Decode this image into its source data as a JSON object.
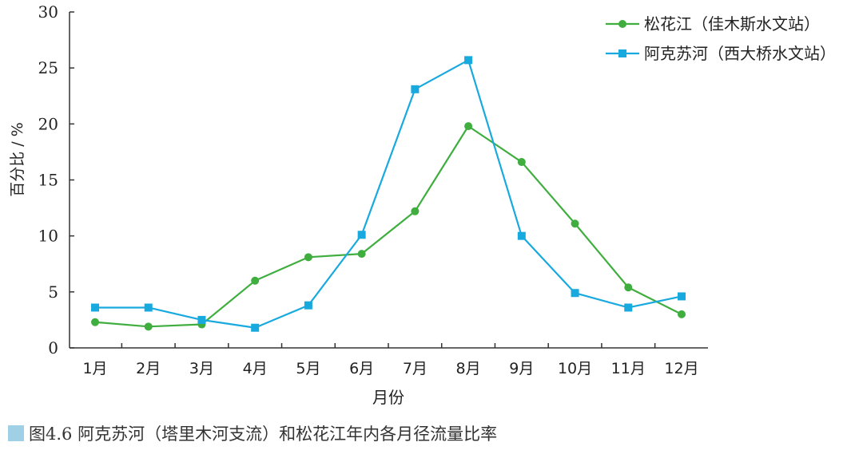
{
  "chart_data": {
    "type": "line",
    "categories": [
      "1月",
      "2月",
      "3月",
      "4月",
      "5月",
      "6月",
      "7月",
      "8月",
      "9月",
      "10月",
      "11月",
      "12月"
    ],
    "series": [
      {
        "name": "松花江（佳木斯水文站）",
        "color": "#3fae3f",
        "marker": "circle",
        "values": [
          2.3,
          1.9,
          2.1,
          6.0,
          8.1,
          8.4,
          12.2,
          19.8,
          16.6,
          11.1,
          5.4,
          3.0
        ]
      },
      {
        "name": "阿克苏河（西大桥水文站）",
        "color": "#18a9df",
        "marker": "square",
        "values": [
          3.6,
          3.6,
          2.5,
          1.8,
          3.8,
          10.1,
          23.1,
          25.7,
          10.0,
          4.9,
          3.6,
          4.6
        ]
      }
    ],
    "xlabel": "月份",
    "ylabel": "百分比 / %",
    "ylim": [
      0,
      30
    ],
    "yticks": [
      0,
      5,
      10,
      15,
      20,
      25,
      30
    ],
    "legend_position": "top-right",
    "grid": false
  },
  "caption": {
    "text": "图4.6  阿克苏河（塔里木河支流）和松花江年内各月径流量比率"
  }
}
